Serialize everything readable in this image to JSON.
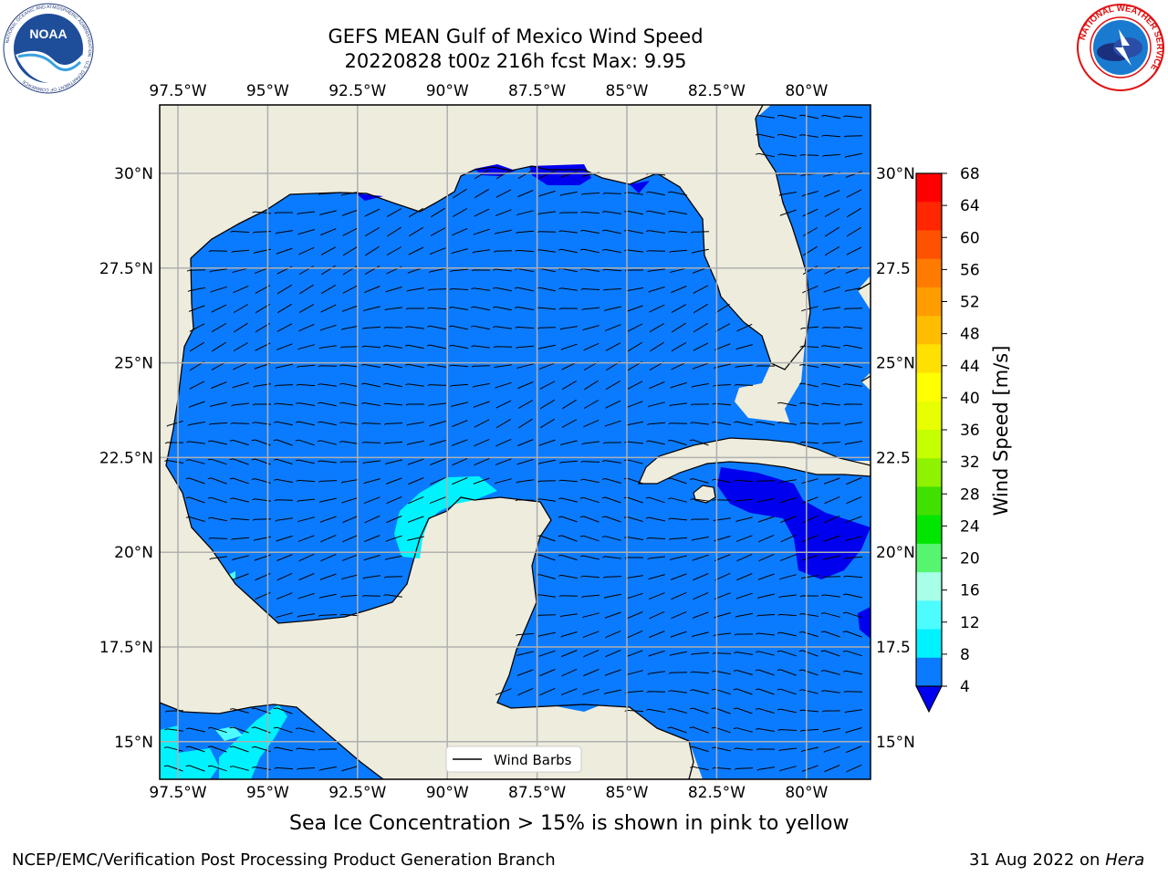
{
  "title": {
    "line1": "GEFS MEAN Gulf of Mexico Wind Speed",
    "line2": "20220828 t00z 216h fcst   Max: 9.95"
  },
  "map": {
    "lon_labels": [
      "97.5°W",
      "95°W",
      "92.5°W",
      "90°W",
      "87.5°W",
      "85°W",
      "82.5°W",
      "80°W"
    ],
    "lat_labels": [
      "30°N",
      "27.5°N",
      "25°N",
      "22.5°N",
      "20°N",
      "17.5°N",
      "15°N"
    ],
    "lat_labels_right": [
      "30°N",
      "27.5",
      "25°N",
      "22.5",
      "20°N",
      "17.5",
      "15°N"
    ],
    "lon_range": [
      -98,
      -78.3
    ],
    "lat_range": [
      14,
      31.8
    ],
    "colors": {
      "land": "#eeecdd",
      "ocean_4_8": "#0a7bff",
      "calm_0_4": "#0000ee",
      "band_8_12": "#00f2ff",
      "band_12_16": "#4dfcff"
    }
  },
  "legend": {
    "label": "Wind Barbs"
  },
  "colorbar": {
    "label": "Wind Speed [m/s]",
    "ticks": [
      "68",
      "64",
      "60",
      "56",
      "52",
      "48",
      "44",
      "40",
      "36",
      "32",
      "28",
      "24",
      "20",
      "16",
      "12",
      "8",
      "4"
    ],
    "colors": [
      "#ff0000",
      "#ff2600",
      "#ff5200",
      "#ff7a00",
      "#ff9c00",
      "#ffbc00",
      "#ffe000",
      "#ffff00",
      "#e8ff00",
      "#c6ff00",
      "#8ef200",
      "#40e000",
      "#00e600",
      "#55f570",
      "#a6ffe6",
      "#4dfcff",
      "#00f2ff",
      "#0a7bff"
    ],
    "extend_color": "#0000ee"
  },
  "caption": "Sea Ice Concentration > 15% is shown in pink to yellow",
  "footer": {
    "left": "NCEP/EMC/Verification Post Processing Product Generation Branch",
    "date": "31 Aug 2022 on",
    "machine": "Hera"
  },
  "logos": {
    "noaa": "NOAA",
    "noaa_ring": "NATIONAL OCEANIC AND ATMOSPHERIC ADMINISTRATION · U.S. DEPARTMENT OF COMMERCE",
    "nws_ring": "NATIONAL WEATHER SERVICE"
  }
}
